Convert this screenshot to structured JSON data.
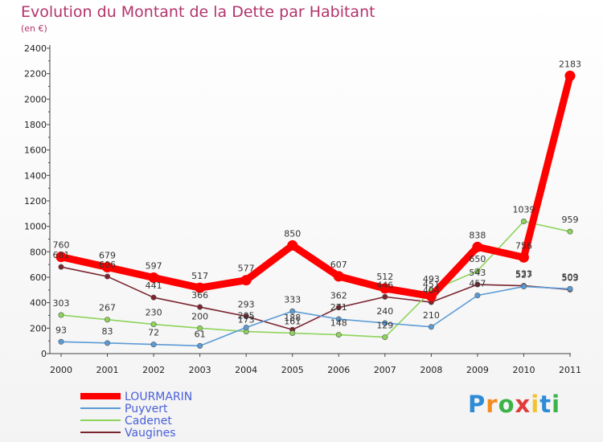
{
  "title": "Evolution du Montant de la Dette par Habitant",
  "subtitle": "(en €)",
  "logo": {
    "letters": [
      "P",
      "r",
      "o",
      "x",
      "i",
      "t",
      "i"
    ],
    "colors": [
      "#2e8bd6",
      "#f28c1e",
      "#3cb34a",
      "#e23b3b",
      "#f2c230",
      "#2e8bd6",
      "#3cb34a"
    ]
  },
  "chart_data": {
    "type": "line",
    "title": "Evolution du Montant de la Dette par Habitant",
    "subtitle": "(en €)",
    "xlabel": "",
    "ylabel": "",
    "x": [
      "2000",
      "2001",
      "2002",
      "2003",
      "2004",
      "2005",
      "2006",
      "2007",
      "2008",
      "2009",
      "2010",
      "2011"
    ],
    "ylim": [
      0,
      2400
    ],
    "yticks": [
      "0",
      "200",
      "400",
      "600",
      "800",
      "1000",
      "1200",
      "1400",
      "1600",
      "1800",
      "2000",
      "2200",
      "2400"
    ],
    "grid": false,
    "legend": "bottom-left",
    "series": [
      {
        "name": "LOURMARIN",
        "color": "#ff0000",
        "values": [
          760,
          679,
          597,
          517,
          577,
          850,
          607,
          512,
          451,
          838,
          756,
          2183
        ]
      },
      {
        "name": "Puyvert",
        "color": "#5b9bd5",
        "values": [
          93,
          83,
          72,
          61,
          205,
          333,
          271,
          240,
          210,
          457,
          527,
          509
        ]
      },
      {
        "name": "Cadenet",
        "color": "#8ed35a",
        "values": [
          303,
          267,
          230,
          200,
          173,
          161,
          148,
          129,
          493,
          650,
          1039,
          959
        ]
      },
      {
        "name": "Vaugines",
        "color": "#7a2430",
        "values": [
          681,
          606,
          441,
          366,
          293,
          188,
          362,
          446,
          404,
          543,
          533,
          503
        ]
      }
    ]
  }
}
